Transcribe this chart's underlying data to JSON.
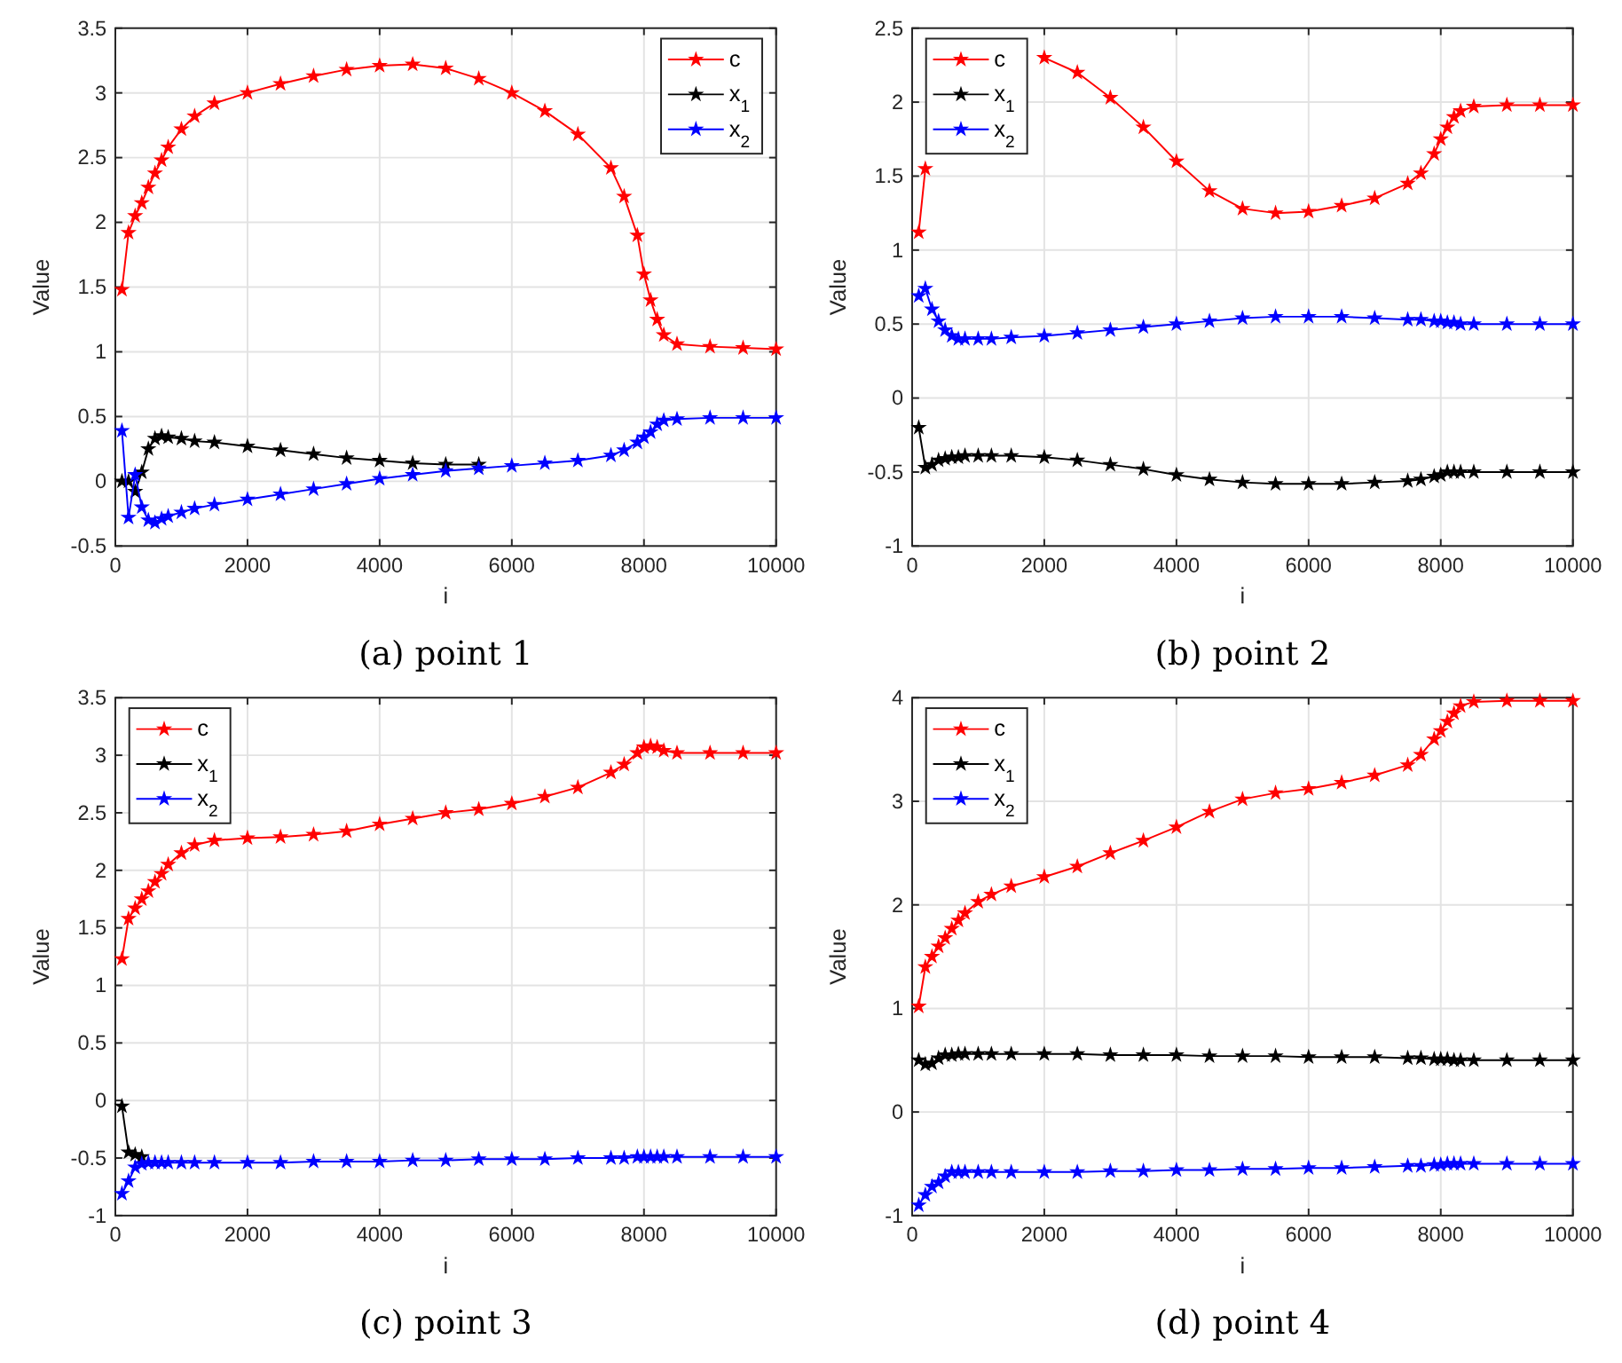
{
  "chart_data": [
    {
      "type": "line",
      "title": "(a) point 1",
      "xlabel": "i",
      "ylabel": "Value",
      "xlim": [
        0,
        10000
      ],
      "xticks": [
        0,
        2000,
        4000,
        6000,
        8000,
        10000
      ],
      "ylim": [
        -0.5,
        3.5
      ],
      "yticks": [
        -0.5,
        0,
        0.5,
        1,
        1.5,
        2,
        2.5,
        3,
        3.5
      ],
      "grid": true,
      "legend": "top right",
      "marker": "star",
      "line_style": "solid",
      "x": [
        100,
        200,
        300,
        400,
        500,
        600,
        700,
        800,
        1000,
        1200,
        1500,
        2000,
        2500,
        3000,
        3500,
        4000,
        4500,
        5000,
        5500,
        6000,
        6500,
        7000,
        7500,
        7700,
        7900,
        8000,
        8100,
        8200,
        8300,
        8500,
        9000,
        9500,
        10000
      ],
      "series": [
        {
          "name": "c",
          "color": "#ff0000",
          "values": [
            1.48,
            1.92,
            2.05,
            2.15,
            2.27,
            2.38,
            2.48,
            2.58,
            2.72,
            2.82,
            2.92,
            3.0,
            3.07,
            3.13,
            3.18,
            3.21,
            3.22,
            3.19,
            3.11,
            3.0,
            2.86,
            2.68,
            2.42,
            2.2,
            1.9,
            1.6,
            1.4,
            1.25,
            1.13,
            1.06,
            1.04,
            1.03,
            1.02
          ]
        },
        {
          "name": "x$_{1}$",
          "color": "#000000",
          "values": [
            0,
            0,
            -0.08,
            0.07,
            0.25,
            0.33,
            0.35,
            0.34,
            0.33,
            0.31,
            0.3,
            0.27,
            0.24,
            0.21,
            0.18,
            0.16,
            0.14,
            0.13,
            0.13,
            null,
            null,
            null,
            null,
            null,
            null,
            null,
            null,
            null,
            null,
            null,
            null,
            null,
            null
          ]
        },
        {
          "name": "x$_{2}$",
          "color": "#0000ff",
          "values": [
            0.39,
            -0.28,
            0.05,
            -0.2,
            -0.3,
            -0.32,
            -0.29,
            -0.27,
            -0.24,
            -0.21,
            -0.18,
            -0.14,
            -0.1,
            -0.06,
            -0.02,
            0.02,
            0.05,
            0.08,
            0.1,
            0.12,
            0.14,
            0.16,
            0.2,
            0.24,
            0.3,
            0.34,
            0.38,
            0.44,
            0.47,
            0.48,
            0.49,
            0.49,
            0.49
          ]
        }
      ]
    },
    {
      "type": "line",
      "title": "(b) point 2",
      "xlabel": "i",
      "ylabel": "Value",
      "xlim": [
        0,
        10000
      ],
      "xticks": [
        0,
        2000,
        4000,
        6000,
        8000,
        10000
      ],
      "ylim": [
        -1,
        2.5
      ],
      "yticks": [
        -1,
        -0.5,
        0,
        0.5,
        1,
        1.5,
        2,
        2.5
      ],
      "grid": true,
      "legend": "top left",
      "marker": "star",
      "line_style": "solid",
      "x": [
        100,
        200,
        300,
        400,
        500,
        600,
        700,
        800,
        1000,
        1200,
        1500,
        2000,
        2500,
        3000,
        3500,
        4000,
        4500,
        5000,
        5500,
        6000,
        6500,
        7000,
        7500,
        7700,
        7900,
        8000,
        8100,
        8200,
        8300,
        8500,
        9000,
        9500,
        10000
      ],
      "series": [
        {
          "name": "c",
          "color": "#ff0000",
          "values": [
            1.12,
            1.55,
            null,
            null,
            null,
            null,
            null,
            null,
            null,
            null,
            null,
            2.3,
            2.2,
            2.03,
            1.83,
            1.6,
            1.4,
            1.28,
            1.25,
            1.26,
            1.3,
            1.35,
            1.45,
            1.52,
            1.65,
            1.75,
            1.83,
            1.9,
            1.94,
            1.97,
            1.98,
            1.98,
            1.98
          ]
        },
        {
          "name": "x$_{1}$",
          "color": "#000000",
          "values": [
            -0.2,
            -0.47,
            -0.45,
            -0.42,
            -0.41,
            -0.4,
            -0.4,
            -0.39,
            -0.39,
            -0.39,
            -0.39,
            -0.4,
            -0.42,
            -0.45,
            -0.48,
            -0.52,
            -0.55,
            -0.57,
            -0.58,
            -0.58,
            -0.58,
            -0.57,
            -0.56,
            -0.55,
            -0.53,
            -0.52,
            -0.5,
            -0.5,
            -0.5,
            -0.5,
            -0.5,
            -0.5,
            -0.5
          ]
        },
        {
          "name": "x$_{2}$",
          "color": "#0000ff",
          "values": [
            0.69,
            0.74,
            0.6,
            0.52,
            0.46,
            0.42,
            0.4,
            0.4,
            0.4,
            0.4,
            0.41,
            0.42,
            0.44,
            0.46,
            0.48,
            0.5,
            0.52,
            0.54,
            0.55,
            0.55,
            0.55,
            0.54,
            0.53,
            0.53,
            0.52,
            0.52,
            0.51,
            0.51,
            0.5,
            0.5,
            0.5,
            0.5,
            0.5
          ]
        }
      ]
    },
    {
      "type": "line",
      "title": "(c) point 3",
      "xlabel": "i",
      "ylabel": "Value",
      "xlim": [
        0,
        10000
      ],
      "xticks": [
        0,
        2000,
        4000,
        6000,
        8000,
        10000
      ],
      "ylim": [
        -1,
        3.5
      ],
      "yticks": [
        -1,
        -0.5,
        0,
        0.5,
        1,
        1.5,
        2,
        2.5,
        3,
        3.5
      ],
      "grid": true,
      "legend": "top left",
      "marker": "star",
      "line_style": "solid",
      "x": [
        100,
        200,
        300,
        400,
        500,
        600,
        700,
        800,
        1000,
        1200,
        1500,
        2000,
        2500,
        3000,
        3500,
        4000,
        4500,
        5000,
        5500,
        6000,
        6500,
        7000,
        7500,
        7700,
        7900,
        8000,
        8100,
        8200,
        8300,
        8500,
        9000,
        9500,
        10000
      ],
      "series": [
        {
          "name": "c",
          "color": "#ff0000",
          "values": [
            1.23,
            1.58,
            1.67,
            1.75,
            1.82,
            1.9,
            1.97,
            2.05,
            2.15,
            2.22,
            2.26,
            2.28,
            2.29,
            2.31,
            2.34,
            2.4,
            2.45,
            2.5,
            2.53,
            2.58,
            2.64,
            2.72,
            2.85,
            2.92,
            3.02,
            3.07,
            3.08,
            3.07,
            3.04,
            3.02,
            3.02,
            3.02,
            3.02
          ]
        },
        {
          "name": "x$_{1}$",
          "color": "#000000",
          "values": [
            -0.05,
            -0.45,
            -0.47,
            -0.49,
            null,
            null,
            null,
            null,
            null,
            null,
            null,
            null,
            null,
            null,
            null,
            null,
            null,
            null,
            null,
            null,
            null,
            null,
            null,
            null,
            null,
            null,
            null,
            null,
            null,
            null,
            null,
            null,
            null
          ]
        },
        {
          "name": "x$_{2}$",
          "color": "#0000ff",
          "values": [
            -0.81,
            -0.7,
            -0.58,
            -0.55,
            -0.54,
            -0.54,
            -0.54,
            -0.54,
            -0.54,
            -0.54,
            -0.54,
            -0.54,
            -0.54,
            -0.53,
            -0.53,
            -0.53,
            -0.52,
            -0.52,
            -0.51,
            -0.51,
            -0.51,
            -0.5,
            -0.5,
            -0.5,
            -0.49,
            -0.49,
            -0.49,
            -0.49,
            -0.49,
            -0.49,
            -0.49,
            -0.49,
            -0.49
          ]
        }
      ]
    },
    {
      "type": "line",
      "title": "(d) point 4",
      "xlabel": "i",
      "ylabel": "Value",
      "xlim": [
        0,
        10000
      ],
      "xticks": [
        0,
        2000,
        4000,
        6000,
        8000,
        10000
      ],
      "ylim": [
        -1,
        4
      ],
      "yticks": [
        -1,
        0,
        1,
        2,
        3,
        4
      ],
      "grid": true,
      "legend": "top left",
      "marker": "star",
      "line_style": "solid",
      "x": [
        100,
        200,
        300,
        400,
        500,
        600,
        700,
        800,
        1000,
        1200,
        1500,
        2000,
        2500,
        3000,
        3500,
        4000,
        4500,
        5000,
        5500,
        6000,
        6500,
        7000,
        7500,
        7700,
        7900,
        8000,
        8100,
        8200,
        8300,
        8500,
        9000,
        9500,
        10000
      ],
      "series": [
        {
          "name": "c",
          "color": "#ff0000",
          "values": [
            1.02,
            1.4,
            1.5,
            1.6,
            1.68,
            1.77,
            1.85,
            1.92,
            2.03,
            2.1,
            2.18,
            2.27,
            2.37,
            2.5,
            2.62,
            2.75,
            2.9,
            3.02,
            3.08,
            3.12,
            3.18,
            3.25,
            3.35,
            3.45,
            3.6,
            3.68,
            3.77,
            3.85,
            3.92,
            3.96,
            3.97,
            3.97,
            3.97
          ]
        },
        {
          "name": "x$_{1}$",
          "color": "#000000",
          "values": [
            0.5,
            0.46,
            0.47,
            0.52,
            0.55,
            0.55,
            0.56,
            0.56,
            0.56,
            0.56,
            0.56,
            0.56,
            0.56,
            0.55,
            0.55,
            0.55,
            0.54,
            0.54,
            0.54,
            0.53,
            0.53,
            0.53,
            0.52,
            0.52,
            0.51,
            0.51,
            0.51,
            0.5,
            0.5,
            0.5,
            0.5,
            0.5,
            0.5
          ]
        },
        {
          "name": "x$_{2}$",
          "color": "#0000ff",
          "values": [
            -0.9,
            -0.8,
            -0.72,
            -0.68,
            -0.62,
            -0.58,
            -0.58,
            -0.58,
            -0.58,
            -0.58,
            -0.58,
            -0.58,
            -0.58,
            -0.57,
            -0.57,
            -0.56,
            -0.56,
            -0.55,
            -0.55,
            -0.54,
            -0.54,
            -0.53,
            -0.52,
            -0.52,
            -0.51,
            -0.51,
            -0.5,
            -0.5,
            -0.5,
            -0.5,
            -0.5,
            -0.5,
            -0.5
          ]
        }
      ]
    }
  ]
}
